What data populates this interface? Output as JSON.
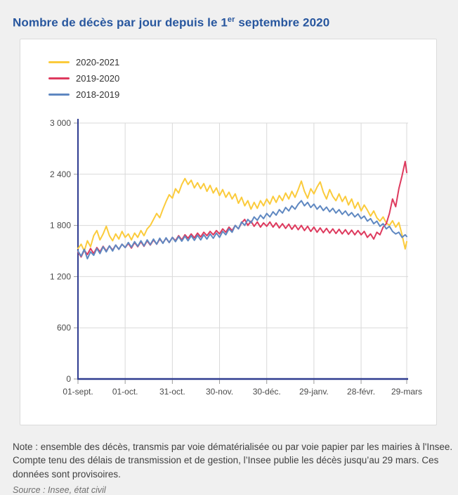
{
  "header": {
    "title_prefix": "Nombre de décès par jour depuis le 1",
    "title_sup": "er",
    "title_suffix": " septembre 2020"
  },
  "note": {
    "text": "Note : ensemble des décès, transmis par voie dématérialisée ou par voie papier par les mairies à l'Insee. Compte tenu des délais de transmission et de gestion, l’Insee publie les décès jusqu’au 29 mars. Ces données sont provisoires."
  },
  "source": {
    "text": "Source : Insee, état civil"
  },
  "colors": {
    "page_background": "#F0F0F0",
    "card_background": "#FFFFFF",
    "card_border": "#DBDBDB",
    "title": "#27569E",
    "axis": "#2F3C90",
    "grid": "#D9D9D9",
    "tick": "#9A9A9A",
    "tick_label": "#4A4A4A"
  },
  "chart_data": {
    "type": "line",
    "title": "Nombre de décès par jour depuis le 1er septembre 2020",
    "xlabel": "",
    "ylabel": "",
    "ylim": [
      0,
      3000
    ],
    "grid": true,
    "legend_position": "top-left",
    "y_ticks": [
      0,
      600,
      1200,
      1800,
      2400,
      3000
    ],
    "y_tick_labels": [
      "0",
      "600",
      "1 200",
      "1 800",
      "2 400",
      "3 000"
    ],
    "x_tick_days": [
      0,
      30,
      60,
      90,
      120,
      150,
      180,
      209
    ],
    "x_tick_labels": [
      "01-sept.",
      "01-oct.",
      "31-oct.",
      "30-nov.",
      "30-déc.",
      "29-janv.",
      "28-févr.",
      "29-mars"
    ],
    "x_days": [
      0,
      2,
      4,
      6,
      8,
      10,
      12,
      14,
      16,
      18,
      20,
      22,
      24,
      26,
      28,
      30,
      32,
      34,
      36,
      38,
      40,
      42,
      44,
      46,
      48,
      50,
      52,
      54,
      56,
      58,
      60,
      62,
      64,
      66,
      68,
      70,
      72,
      74,
      76,
      78,
      80,
      82,
      84,
      86,
      88,
      90,
      92,
      94,
      96,
      98,
      100,
      102,
      104,
      106,
      108,
      110,
      112,
      114,
      116,
      118,
      120,
      122,
      124,
      126,
      128,
      130,
      132,
      134,
      136,
      138,
      140,
      142,
      144,
      146,
      148,
      150,
      152,
      154,
      156,
      158,
      160,
      162,
      164,
      166,
      168,
      170,
      172,
      174,
      176,
      178,
      180,
      182,
      184,
      186,
      188,
      190,
      192,
      194,
      196,
      198,
      200,
      202,
      204,
      206,
      208,
      209
    ],
    "series": [
      {
        "name": "2020-2021",
        "color": "#FBCB3C",
        "values": [
          1530,
          1580,
          1500,
          1620,
          1550,
          1680,
          1740,
          1630,
          1700,
          1790,
          1680,
          1620,
          1700,
          1640,
          1730,
          1660,
          1700,
          1630,
          1710,
          1660,
          1740,
          1680,
          1760,
          1800,
          1870,
          1940,
          1890,
          1990,
          2080,
          2160,
          2120,
          2230,
          2180,
          2280,
          2350,
          2280,
          2330,
          2240,
          2300,
          2230,
          2290,
          2200,
          2270,
          2180,
          2240,
          2150,
          2220,
          2130,
          2190,
          2110,
          2170,
          2060,
          2130,
          2030,
          2090,
          1990,
          2070,
          2000,
          2090,
          2030,
          2110,
          2050,
          2140,
          2070,
          2150,
          2090,
          2180,
          2110,
          2200,
          2130,
          2220,
          2320,
          2200,
          2120,
          2230,
          2170,
          2250,
          2310,
          2190,
          2110,
          2220,
          2140,
          2090,
          2170,
          2080,
          2140,
          2040,
          2110,
          2000,
          2070,
          1970,
          2040,
          1980,
          1910,
          1970,
          1890,
          1850,
          1900,
          1830,
          1800,
          1855,
          1780,
          1835,
          1690,
          1525,
          1610
        ]
      },
      {
        "name": "2019-2020",
        "color": "#DE3A5E",
        "values": [
          1490,
          1430,
          1510,
          1460,
          1530,
          1470,
          1540,
          1490,
          1555,
          1500,
          1560,
          1510,
          1570,
          1520,
          1580,
          1540,
          1590,
          1535,
          1600,
          1550,
          1610,
          1555,
          1620,
          1570,
          1630,
          1580,
          1640,
          1595,
          1650,
          1600,
          1660,
          1620,
          1680,
          1630,
          1690,
          1650,
          1700,
          1655,
          1710,
          1665,
          1720,
          1680,
          1730,
          1690,
          1740,
          1700,
          1760,
          1720,
          1780,
          1740,
          1800,
          1760,
          1830,
          1870,
          1800,
          1850,
          1790,
          1840,
          1780,
          1830,
          1790,
          1840,
          1780,
          1830,
          1770,
          1820,
          1765,
          1815,
          1755,
          1805,
          1750,
          1800,
          1740,
          1790,
          1730,
          1780,
          1720,
          1770,
          1715,
          1765,
          1710,
          1760,
          1705,
          1755,
          1700,
          1750,
          1695,
          1745,
          1690,
          1740,
          1690,
          1730,
          1660,
          1700,
          1640,
          1720,
          1690,
          1780,
          1820,
          1940,
          2110,
          2020,
          2230,
          2380,
          2550,
          2420
        ]
      },
      {
        "name": "2018-2019",
        "color": "#5F88C1",
        "values": [
          1500,
          1440,
          1520,
          1410,
          1490,
          1450,
          1530,
          1470,
          1550,
          1490,
          1560,
          1500,
          1570,
          1520,
          1580,
          1540,
          1600,
          1545,
          1610,
          1555,
          1620,
          1560,
          1630,
          1575,
          1640,
          1580,
          1650,
          1590,
          1655,
          1600,
          1660,
          1610,
          1670,
          1615,
          1675,
          1620,
          1680,
          1625,
          1685,
          1630,
          1690,
          1640,
          1700,
          1650,
          1710,
          1660,
          1730,
          1690,
          1760,
          1720,
          1800,
          1760,
          1840,
          1800,
          1870,
          1830,
          1900,
          1860,
          1920,
          1880,
          1940,
          1900,
          1960,
          1920,
          1985,
          1945,
          2010,
          1970,
          2030,
          1990,
          2050,
          2090,
          2030,
          2070,
          2010,
          2050,
          1990,
          2030,
          1975,
          2015,
          1960,
          2000,
          1945,
          1985,
          1930,
          1970,
          1915,
          1950,
          1900,
          1935,
          1880,
          1910,
          1850,
          1880,
          1820,
          1850,
          1790,
          1820,
          1760,
          1790,
          1730,
          1700,
          1720,
          1660,
          1690,
          1670
        ]
      }
    ]
  }
}
